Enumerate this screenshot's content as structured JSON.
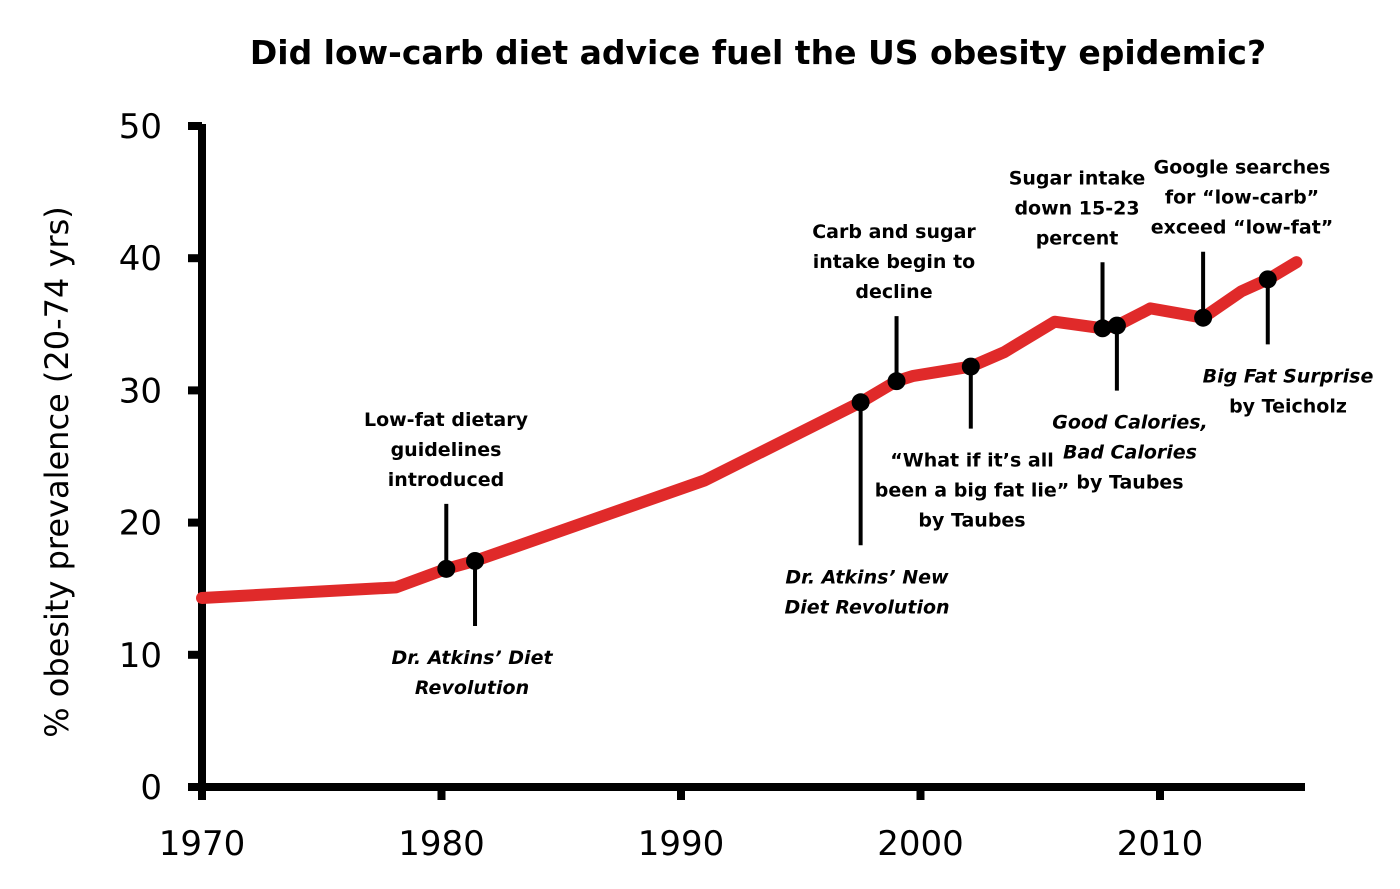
{
  "chart_data": {
    "type": "line",
    "title": "Did low-carb diet advice fuel the US obesity epidemic?",
    "xlabel": "",
    "ylabel": "% obesity prevalence (20-74 yrs)",
    "xlim": [
      1970,
      2016
    ],
    "ylim": [
      0,
      50
    ],
    "xticks": [
      1970,
      1980,
      1990,
      2000,
      2010
    ],
    "yticks": [
      0,
      10,
      20,
      30,
      40,
      50
    ],
    "grid": false,
    "legend": "none",
    "series": [
      {
        "name": "Obesity prevalence",
        "color": "#e02a2a",
        "x": [
          1970,
          1978.1,
          1980.2,
          1981.4,
          1991.0,
          1997.5,
          1999.0,
          1999.7,
          2002.1,
          2003.5,
          2005.6,
          2007.6,
          2008.2,
          2009.6,
          2011.8,
          2013.4,
          2014.5,
          2015.7
        ],
        "y": [
          14.3,
          15.1,
          16.5,
          17.1,
          23.2,
          29.1,
          30.7,
          31.1,
          31.8,
          32.9,
          35.2,
          34.7,
          34.9,
          36.2,
          35.5,
          37.5,
          38.4,
          39.7
        ]
      }
    ],
    "annotations": [
      {
        "id": "low-fat-guidelines",
        "x": 1980.2,
        "y": 16.5,
        "position": "above",
        "italic": false,
        "lines": [
          "Low-fat dietary",
          "guidelines",
          "introduced"
        ]
      },
      {
        "id": "atkins-diet-revolution",
        "x": 1981.4,
        "y": 17.1,
        "position": "below",
        "italic": true,
        "lines": [
          "Dr. Atkins’ Diet",
          "Revolution"
        ]
      },
      {
        "id": "atkins-new-diet-revolution",
        "x": 1997.5,
        "y": 29.1,
        "position": "below",
        "italic": true,
        "lines": [
          "Dr. Atkins’ New",
          "Diet Revolution"
        ]
      },
      {
        "id": "carb-sugar-decline",
        "x": 1999.0,
        "y": 30.7,
        "position": "above",
        "italic": false,
        "lines": [
          "Carb and sugar",
          "intake begin to",
          "decline"
        ]
      },
      {
        "id": "big-fat-lie",
        "x": 2002.1,
        "y": 31.8,
        "position": "below",
        "italic": false,
        "lines": [
          "“What if it’s all",
          "been a big fat lie”",
          "by Taubes"
        ]
      },
      {
        "id": "sugar-intake-down",
        "x": 2007.6,
        "y": 34.7,
        "position": "above",
        "italic": false,
        "lines": [
          "Sugar intake",
          "down 15-23",
          "percent"
        ]
      },
      {
        "id": "good-calories",
        "x": 2008.2,
        "y": 34.9,
        "position": "below",
        "italic": true,
        "lines": [
          "Good Calories,",
          "Bad Calories",
          "by Taubes"
        ],
        "italic_lines": [
          true,
          true,
          false
        ]
      },
      {
        "id": "google-searches",
        "x": 2011.8,
        "y": 35.5,
        "position": "above",
        "italic": false,
        "lines": [
          "Google searches",
          "for “low-carb”",
          "exceed “low-fat”"
        ]
      },
      {
        "id": "big-fat-surprise",
        "x": 2014.5,
        "y": 38.4,
        "position": "below",
        "italic": true,
        "lines": [
          "Big Fat Surprise",
          "by Teicholz"
        ],
        "italic_lines": [
          true,
          false
        ]
      }
    ]
  }
}
